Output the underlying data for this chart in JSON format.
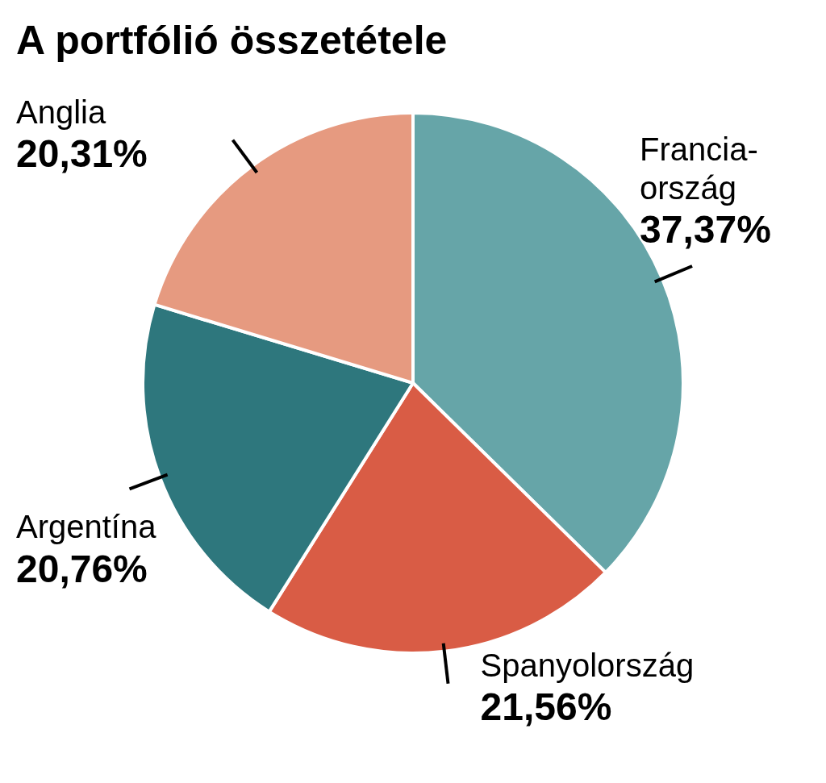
{
  "chart_data": {
    "type": "pie",
    "title": "A portfólió összetétele",
    "categories": [
      "Francia-ország",
      "Spanyolország",
      "Argentína",
      "Anglia"
    ],
    "values": [
      37.37,
      21.56,
      20.76,
      20.31
    ],
    "colors": [
      "#66a5a8",
      "#d95c45",
      "#2e777d",
      "#e69a80"
    ],
    "value_labels": [
      "37,37%",
      "21,56%",
      "20,76%",
      "20,31%"
    ],
    "legend": false
  }
}
